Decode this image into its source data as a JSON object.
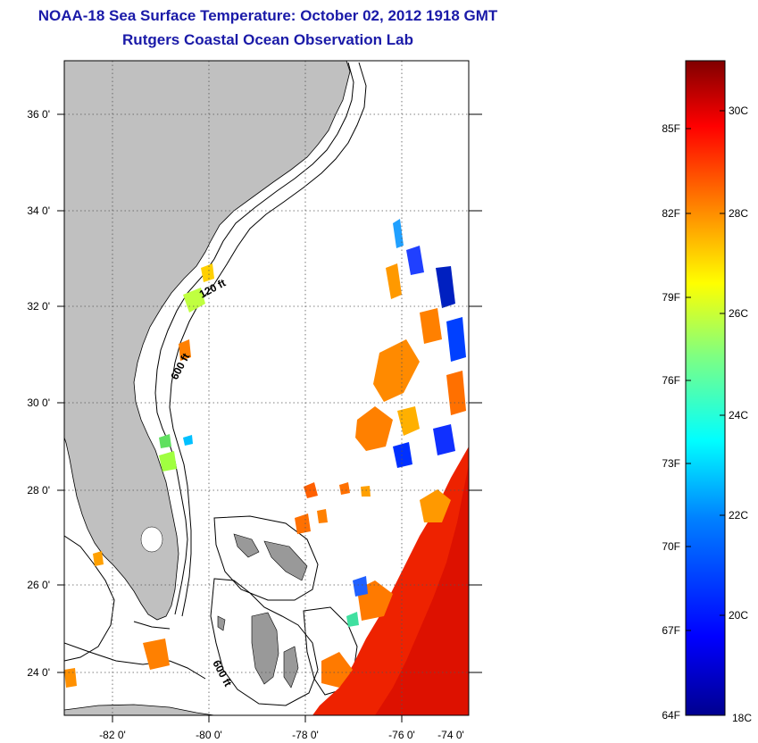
{
  "title": {
    "line1": "NOAA-18 Sea Surface Temperature:  October 02, 2012 1918 GMT",
    "line2": "Rutgers Coastal Ocean Observation Lab"
  },
  "map": {
    "lon_ticks": [
      "-82 0'",
      "-80 0'",
      "-78 0'",
      "-76 0'",
      "-74 0'"
    ],
    "lat_ticks": [
      "36 0'",
      "34 0'",
      "32 0'",
      "30 0'",
      "28 0'",
      "26 0'",
      "24 0'"
    ],
    "contour_labels": [
      "120 ft",
      "600 ft",
      "600 ft"
    ],
    "colors": {
      "land": "#c0c0c0",
      "ocean": "#ffffff",
      "contour": "#000000"
    }
  },
  "colorbar": {
    "fahrenheit_labels": [
      "85F",
      "82F",
      "79F",
      "76F",
      "73F",
      "70F",
      "67F",
      "64F"
    ],
    "celsius_labels": [
      "30C",
      "28C",
      "26C",
      "24C",
      "22C",
      "20C",
      "18C"
    ],
    "colormap": [
      "#00008f",
      "#0000ff",
      "#0080ff",
      "#00ffff",
      "#80ff80",
      "#ffff00",
      "#ff8000",
      "#ff0000",
      "#800000"
    ]
  }
}
